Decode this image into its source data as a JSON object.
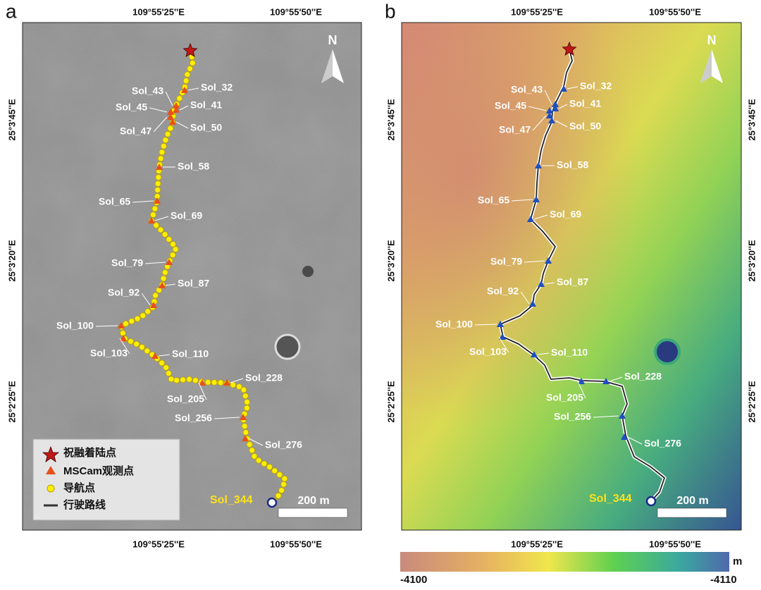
{
  "panels": [
    {
      "label": "a"
    },
    {
      "label": "b"
    }
  ],
  "coordinates": {
    "longitudes": [
      "109°55'25''E",
      "109°55'50''E"
    ],
    "latitudes": [
      "25°3'45''E",
      "25°3'20''E",
      "25°2'25''E"
    ]
  },
  "sols": [
    "Sol_32",
    "Sol_43",
    "Sol_41",
    "Sol_45",
    "Sol_47",
    "Sol_50",
    "Sol_58",
    "Sol_65",
    "Sol_69",
    "Sol_79",
    "Sol_87",
    "Sol_92",
    "Sol_100",
    "Sol_103",
    "Sol_110",
    "Sol_205",
    "Sol_228",
    "Sol_256",
    "Sol_276",
    "Sol_344"
  ],
  "north": "N",
  "scale_bar": "200 m",
  "legend": [
    "祝融着陆点",
    "MSCam观测点",
    "导航点",
    "行驶路线"
  ],
  "colorbar": {
    "min": -4100,
    "max": -4110,
    "unit": "m"
  }
}
